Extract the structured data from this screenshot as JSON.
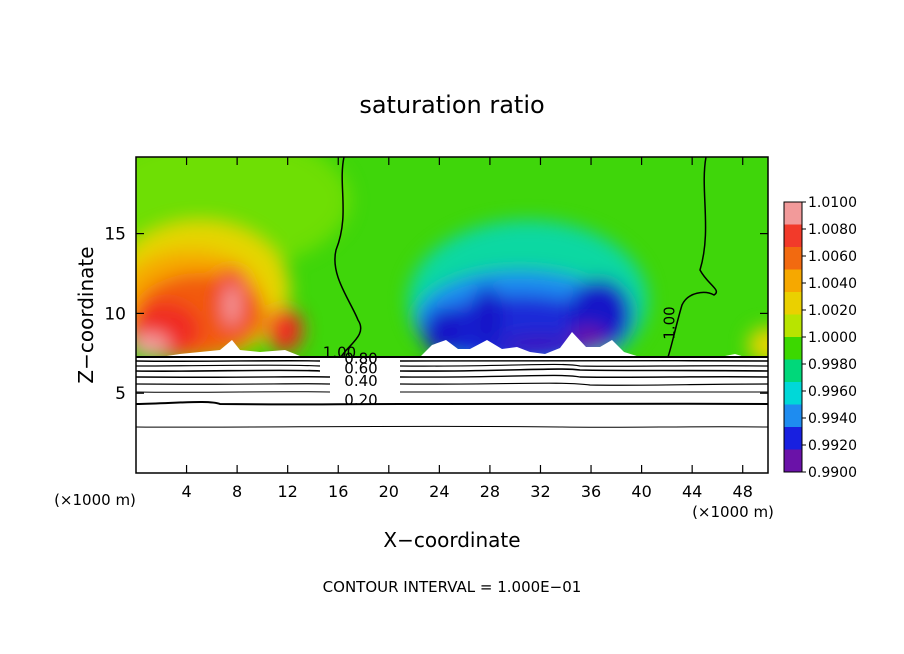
{
  "chart_data": {
    "type": "heatmap",
    "title": "saturation ratio",
    "xlabel": "X−coordinate",
    "ylabel": "Z−coordinate",
    "x_unit_left": "(×1000 m)",
    "x_unit_right": "(×1000 m)",
    "footer": "CONTOUR INTERVAL = 1.000E−01",
    "xlim": [
      0,
      50
    ],
    "ylim": [
      0,
      19.8
    ],
    "x_ticks": [
      {
        "v": 4,
        "label": "4"
      },
      {
        "v": 8,
        "label": "8"
      },
      {
        "v": 12,
        "label": "12"
      },
      {
        "v": 16,
        "label": "16"
      },
      {
        "v": 20,
        "label": "20"
      },
      {
        "v": 24,
        "label": "24"
      },
      {
        "v": 28,
        "label": "28"
      },
      {
        "v": 32,
        "label": "32"
      },
      {
        "v": 36,
        "label": "36"
      },
      {
        "v": 40,
        "label": "40"
      },
      {
        "v": 44,
        "label": "44"
      },
      {
        "v": 48,
        "label": "48"
      }
    ],
    "y_ticks": [
      {
        "v": 5,
        "label": "5"
      },
      {
        "v": 10,
        "label": "10"
      },
      {
        "v": 15,
        "label": "15"
      }
    ],
    "colorbar": {
      "min": 0.99,
      "max": 1.01,
      "labels": [
        "1.0100",
        "1.0080",
        "1.0060",
        "1.0040",
        "1.0020",
        "1.0000",
        "0.9980",
        "0.9960",
        "0.9940",
        "0.9920",
        "0.9900"
      ],
      "colors": [
        "#f29a9a",
        "#f23a2a",
        "#f26a10",
        "#f6a800",
        "#ead000",
        "#b8e400",
        "#3cd800",
        "#00d87a",
        "#00d8d8",
        "#1e8cf0",
        "#1820e0",
        "#6a12a8"
      ]
    },
    "contour_labels": [
      {
        "text": "1.00",
        "x": 16.1,
        "y": 7.25
      },
      {
        "text": "0.80",
        "x": 17.8,
        "y": 6.85
      },
      {
        "text": "0.60",
        "x": 17.8,
        "y": 6.25
      },
      {
        "text": "0.40",
        "x": 17.8,
        "y": 5.45
      },
      {
        "text": "0.20",
        "x": 17.8,
        "y": 4.25
      },
      {
        "text": "1.00",
        "x": 42.6,
        "y": 9.4
      }
    ]
  }
}
